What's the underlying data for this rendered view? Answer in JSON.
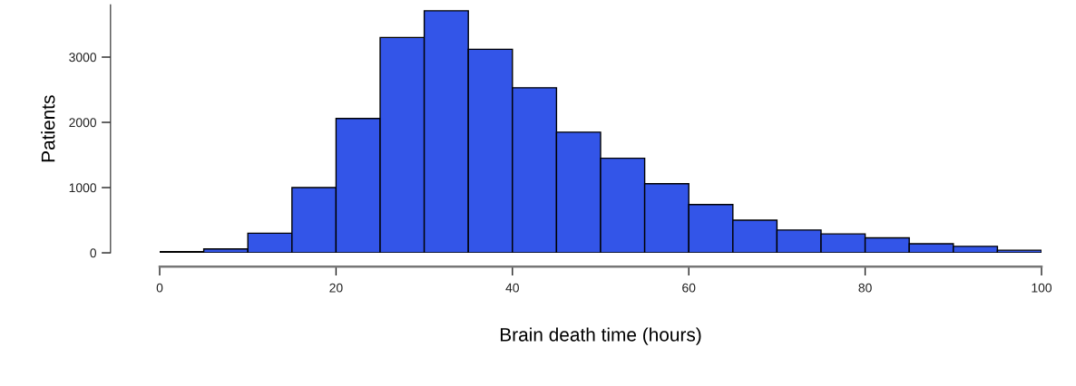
{
  "chart_data": {
    "type": "histogram",
    "bins": [
      0,
      5,
      10,
      15,
      20,
      25,
      30,
      35,
      40,
      45,
      50,
      55,
      60,
      65,
      70,
      75,
      80,
      85,
      90,
      95,
      100
    ],
    "values": [
      20,
      60,
      300,
      1000,
      2060,
      3300,
      3710,
      3120,
      2530,
      1850,
      1450,
      1060,
      740,
      500,
      350,
      290,
      230,
      140,
      100,
      40
    ],
    "color": "#3355e8",
    "xlabel": "Brain death time (hours)",
    "ylabel": "Patients",
    "xlim": [
      0,
      100
    ],
    "ylim": [
      0,
      3800
    ],
    "xticks": [
      0,
      20,
      40,
      60,
      80,
      100
    ],
    "yticks": [
      0,
      1000,
      2000,
      3000
    ],
    "grid": false,
    "legend": false
  }
}
